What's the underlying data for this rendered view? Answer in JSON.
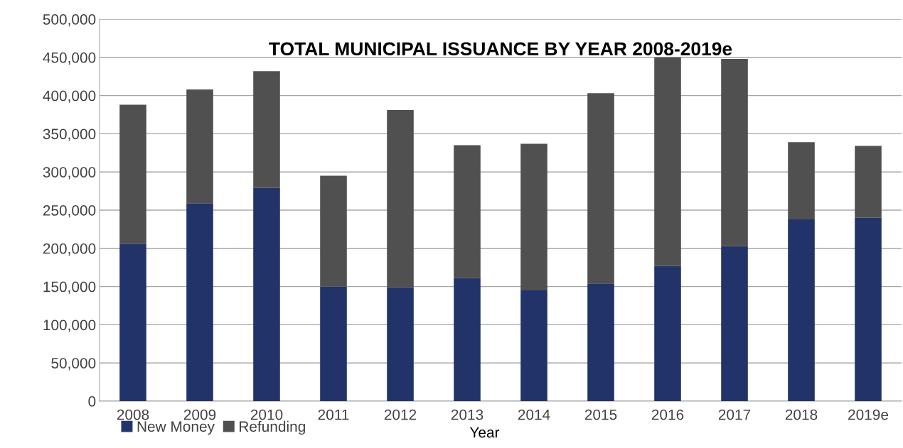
{
  "chart_data": {
    "type": "bar",
    "stacked": true,
    "title": "TOTAL MUNICIPAL ISSUANCE BY YEAR 2008-2019e",
    "xlabel": "Year",
    "categories": [
      "2008",
      "2009",
      "2010",
      "2011",
      "2012",
      "2013",
      "2014",
      "2015",
      "2016",
      "2017",
      "2018",
      "2019e"
    ],
    "series": [
      {
        "name": "New Money",
        "color": "#22336a",
        "values": [
          206000,
          259000,
          279000,
          150000,
          149000,
          161000,
          145000,
          154000,
          177000,
          203000,
          238000,
          240000
        ]
      },
      {
        "name": "Refunding",
        "color": "#505050",
        "values": [
          182000,
          149000,
          153000,
          145000,
          232000,
          174000,
          192000,
          249000,
          273000,
          245000,
          101000,
          94000
        ]
      }
    ],
    "ylim": [
      0,
      500000
    ],
    "yticks": [
      {
        "value": 0,
        "label": "0"
      },
      {
        "value": 50000,
        "label": "50,000"
      },
      {
        "value": 100000,
        "label": "100,000"
      },
      {
        "value": 150000,
        "label": "150,000"
      },
      {
        "value": 200000,
        "label": "200,000"
      },
      {
        "value": 250000,
        "label": "250,000"
      },
      {
        "value": 300000,
        "label": "300,000"
      },
      {
        "value": 350000,
        "label": "350,000"
      },
      {
        "value": 400000,
        "label": "400,000"
      },
      {
        "value": 450000,
        "label": "450,000"
      },
      {
        "value": 500000,
        "label": "500,000"
      }
    ],
    "grid": "y",
    "legend": "bottom left"
  }
}
